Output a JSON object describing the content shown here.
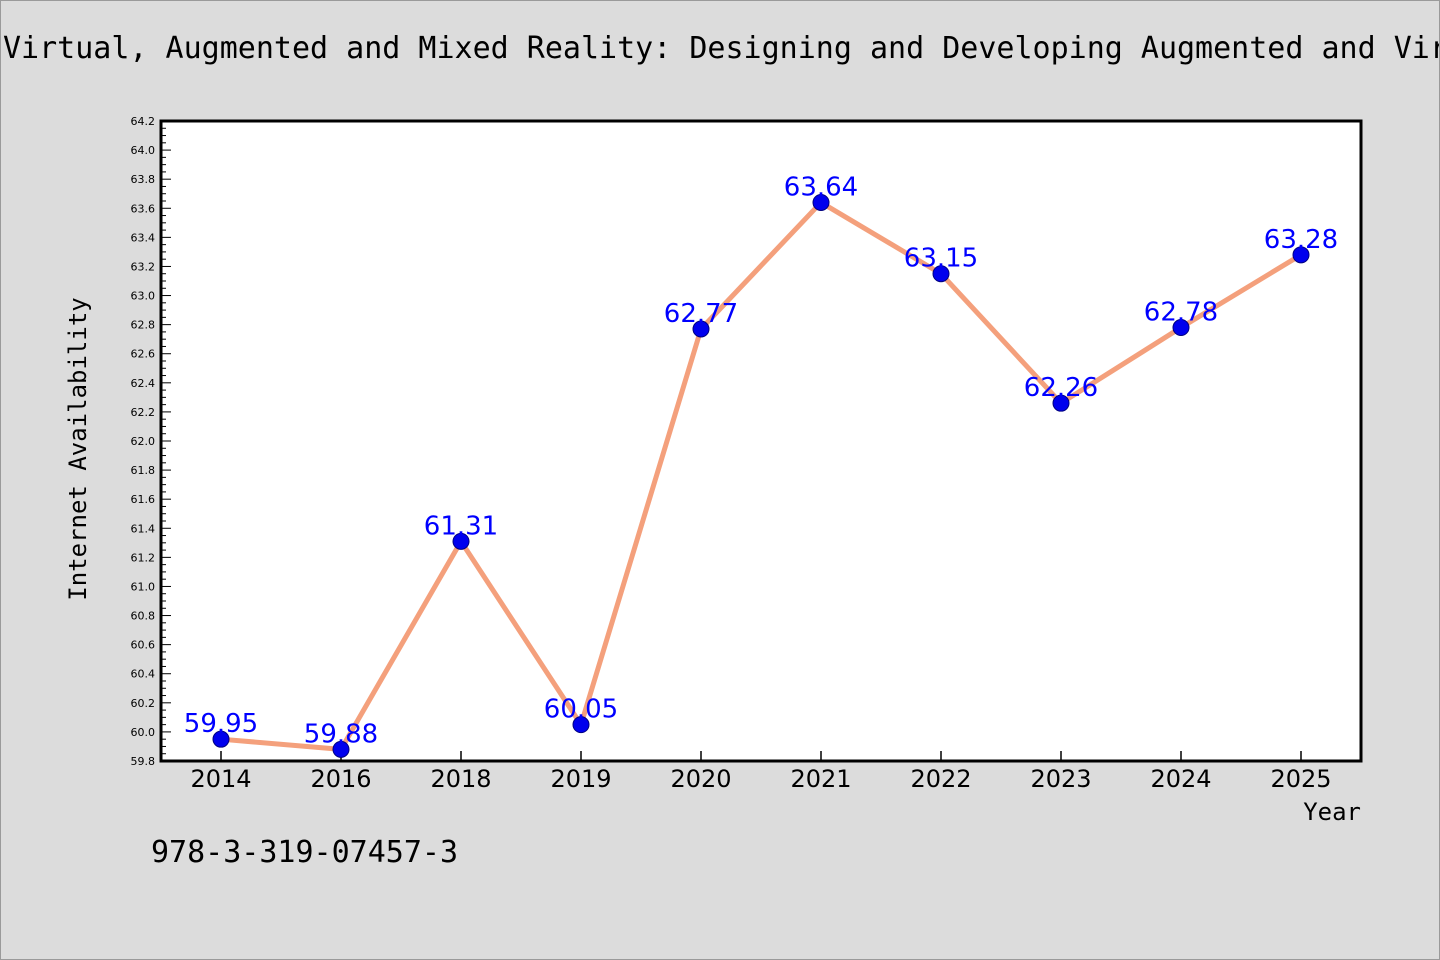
{
  "chart_data": {
    "type": "line",
    "title": "Virtual, Augmented and Mixed Reality: Designing and Developing Augmented and Virtual Environments",
    "xlabel": "Year",
    "ylabel": "Internet Availability",
    "categories": [
      "2014",
      "2016",
      "2018",
      "2019",
      "2020",
      "2021",
      "2022",
      "2023",
      "2024",
      "2025"
    ],
    "series": [
      {
        "values": [
          59.95,
          59.88,
          61.31,
          60.05,
          62.77,
          63.64,
          63.15,
          62.26,
          62.78,
          63.28
        ],
        "data_labels": [
          "59.95",
          "59.88",
          "61.31",
          "60.05",
          "62.77",
          "63.64",
          "63.15",
          "62.26",
          "62.78",
          "63.28"
        ]
      }
    ],
    "ylim": [
      59.8,
      64.2
    ],
    "yticks": [
      "59.8",
      "60.0",
      "60.2",
      "60.4",
      "60.6",
      "60.8",
      "61.0",
      "61.2",
      "61.4",
      "61.6",
      "61.8",
      "62.0",
      "62.2",
      "62.4",
      "62.6",
      "62.8",
      "63.0",
      "63.2",
      "63.4",
      "63.6",
      "63.8",
      "64.0",
      "64.2"
    ],
    "grid": false,
    "colors": {
      "line": "#f4a07c",
      "marker": "#0000ee",
      "label": "#0000ff",
      "plot_background": "#ffffff",
      "figure_background": "#dcdcdc"
    }
  },
  "footer": {
    "isbn": "978-3-319-07457-3"
  }
}
